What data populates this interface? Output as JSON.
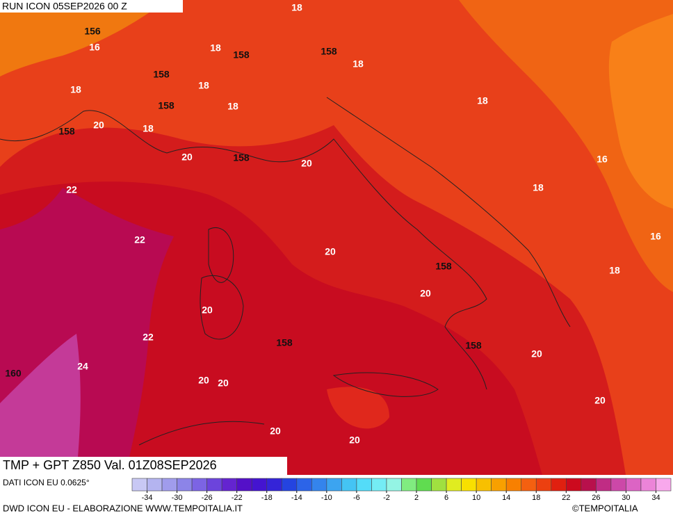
{
  "header": {
    "run": "RUN ICON 05SEP2026 00 Z"
  },
  "map": {
    "labels": [
      18,
      156,
      16,
      18,
      158,
      158,
      18,
      158,
      18,
      18,
      158,
      18,
      18,
      158,
      20,
      18,
      20,
      158,
      20,
      16,
      22,
      18,
      22,
      16,
      20,
      158,
      18,
      20,
      20,
      22,
      158,
      158,
      20,
      160,
      24,
      20,
      20,
      20,
      20,
      20
    ]
  },
  "footer": {
    "title": "TMP + GPT Z850 Val. 01Z08SEP2026",
    "source": "DATI ICON EU 0.0625°",
    "credit": "DWD ICON EU - ELABORAZIONE WWW.TEMPOITALIA.IT",
    "copyright": "©TEMPOITALIA"
  },
  "colorbar": {
    "range": [
      -36,
      36
    ],
    "ticks": [
      -34,
      -30,
      -26,
      -22,
      -18,
      -14,
      -10,
      -6,
      -2,
      2,
      6,
      10,
      14,
      18,
      22,
      26,
      30,
      34
    ],
    "colors": [
      "#c8c8f4",
      "#b4b4f0",
      "#a09cec",
      "#8c84e8",
      "#7c64e4",
      "#6c44dc",
      "#6424d0",
      "#5410c8",
      "#4414d0",
      "#3424d8",
      "#2444e0",
      "#2c64e8",
      "#3484ec",
      "#3ca4f0",
      "#44c4f4",
      "#54dcf8",
      "#74ecf4",
      "#94f4e4",
      "#80ec80",
      "#60dc50",
      "#a0e040",
      "#e0ec20",
      "#f8e000",
      "#f8c000",
      "#f8a000",
      "#f88000",
      "#f46010",
      "#ec4010",
      "#e02010",
      "#cc0a1e",
      "#b8104c",
      "#c02c84",
      "#cc48a8",
      "#dc64c4",
      "#ec84d8",
      "#f8a8ec"
    ]
  }
}
